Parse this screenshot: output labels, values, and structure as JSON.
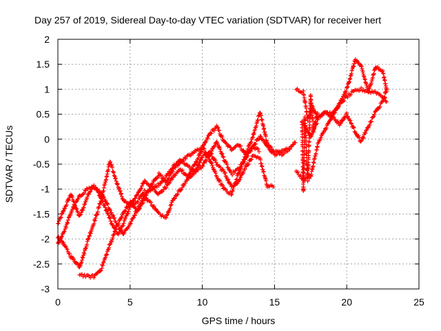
{
  "chart_data": {
    "type": "scatter",
    "title": "Day 257 of 2019, Sidereal Day-to-day VTEC variation (SDTVAR) for receiver hert",
    "xlabel": "GPS time / hours",
    "ylabel": "SDTVAR / TECUs",
    "xlim": [
      0,
      25
    ],
    "ylim": [
      -3,
      2
    ],
    "x_ticks": [
      "0",
      "5",
      "10",
      "15",
      "20",
      "25"
    ],
    "y_ticks": [
      "-3",
      "-2.5",
      "-2",
      "-1.5",
      "-1",
      "-0.5",
      "0",
      "0.5",
      "1",
      "1.5",
      "2"
    ],
    "grid": true,
    "marker": "+",
    "color": "#ff0000",
    "series": [
      {
        "x": [
          0,
          0.3,
          0.6,
          0.9,
          1.2,
          1.5,
          1.8,
          2.1,
          2.4,
          2.7,
          3.0,
          3.4,
          3.8,
          4.2,
          4.6,
          5.0,
          5.5,
          6.0,
          6.5,
          7.0,
          7.5,
          8.0,
          8.5,
          9.0,
          9.5,
          10.0,
          10.5,
          11.0,
          11.5,
          12.0,
          12.5,
          13.0,
          13.5,
          14.0,
          14.5,
          15.0,
          15.5,
          16.0,
          16.5
        ],
        "y": [
          -1.7,
          -1.5,
          -1.3,
          -1.1,
          -1.35,
          -1.55,
          -1.35,
          -1.1,
          -0.95,
          -1.0,
          -1.2,
          -1.45,
          -1.75,
          -1.9,
          -1.65,
          -1.35,
          -1.1,
          -0.85,
          -0.95,
          -1.1,
          -0.95,
          -0.75,
          -0.6,
          -0.75,
          -0.5,
          -0.2,
          0.1,
          0.25,
          -0.05,
          -0.2,
          -0.1,
          -0.3,
          -0.15,
          0.05,
          -0.15,
          -0.3,
          -0.25,
          -0.2,
          -0.05
        ]
      },
      {
        "x": [
          0,
          0.3,
          0.6,
          0.9,
          1.2,
          1.5,
          1.8,
          2.1,
          2.4,
          2.7,
          3.0,
          3.3,
          3.6,
          4.0,
          4.5,
          5.0,
          5.5,
          6.0,
          6.5,
          7.0,
          7.5,
          8.0,
          8.5,
          9.0,
          9.5,
          10.0,
          10.5,
          11.0,
          11.5,
          12.0,
          12.5,
          13.0,
          13.5,
          14.0
        ],
        "y": [
          -1.95,
          -2.05,
          -2.2,
          -2.35,
          -2.45,
          -2.55,
          -2.3,
          -2.0,
          -1.75,
          -1.5,
          -1.2,
          -0.85,
          -0.45,
          -0.8,
          -1.2,
          -1.35,
          -1.25,
          -1.05,
          -1.0,
          -0.9,
          -0.75,
          -0.55,
          -0.4,
          -0.55,
          -0.65,
          -0.55,
          -0.3,
          -0.05,
          -0.4,
          -0.7,
          -0.6,
          -0.4,
          -0.15,
          -0.25
        ]
      },
      {
        "x": [
          0,
          0.5,
          1.0,
          1.5,
          2.0,
          2.5,
          3.0,
          3.5,
          4.0,
          4.5,
          5.0,
          5.5,
          6.0,
          6.5,
          7.0,
          7.5,
          8.0,
          8.5,
          9.0,
          9.5,
          10.0,
          10.5,
          11.0,
          11.5,
          12.0,
          12.5,
          13.0,
          13.5,
          14.0,
          14.5,
          15.0
        ],
        "y": [
          -2.1,
          -1.8,
          -1.4,
          -1.15,
          -1.0,
          -0.95,
          -1.1,
          -1.35,
          -1.65,
          -1.9,
          -1.7,
          -1.4,
          -1.15,
          -1.3,
          -1.5,
          -1.55,
          -1.2,
          -1.0,
          -0.8,
          -0.65,
          -0.35,
          -0.25,
          -0.5,
          -0.65,
          -0.95,
          -0.85,
          -0.55,
          -0.35,
          -0.4,
          -0.95,
          -0.95
        ]
      },
      {
        "x": [
          1.5,
          2.0,
          2.5,
          3.0,
          3.5,
          4.0,
          4.5,
          5.0,
          5.5,
          6.0,
          6.5,
          7.0,
          7.5,
          8.0,
          8.5,
          9.0,
          9.5,
          10.0,
          10.5,
          11.0,
          11.5,
          12.0,
          12.5,
          13.0,
          13.5,
          14.0,
          14.5,
          15.0,
          15.5,
          16.0
        ],
        "y": [
          -2.7,
          -2.75,
          -2.75,
          -2.6,
          -2.2,
          -1.8,
          -1.5,
          -1.25,
          -1.45,
          -1.2,
          -0.9,
          -0.7,
          -0.85,
          -0.6,
          -0.45,
          -0.35,
          -0.25,
          -0.15,
          -0.4,
          -0.75,
          -1.0,
          -1.1,
          -0.7,
          -0.3,
          0.05,
          0.55,
          -0.1,
          -0.25,
          -0.3,
          -0.25
        ]
      },
      {
        "x": [
          16.5,
          17.0,
          17.3,
          17.6,
          18.0,
          18.5,
          19.0,
          19.5,
          20.0,
          20.5,
          21.0,
          21.5,
          22.0,
          22.5,
          22.8
        ],
        "y": [
          1.0,
          0.95,
          0.4,
          0.65,
          0.45,
          0.55,
          0.5,
          0.7,
          0.85,
          0.95,
          1.0,
          0.95,
          0.95,
          0.85,
          0.75
        ]
      },
      {
        "x": [
          16.5,
          17.0,
          17.5,
          18.0,
          18.5,
          19.0,
          19.5,
          20.0,
          20.3,
          20.6,
          21.0,
          21.5,
          22.0,
          22.5,
          22.8
        ],
        "y": [
          -0.65,
          -0.8,
          -0.75,
          -0.1,
          0.2,
          0.45,
          0.7,
          1.0,
          1.3,
          1.6,
          1.45,
          0.95,
          1.45,
          1.35,
          0.95
        ]
      },
      {
        "x": [
          17.0,
          17.5,
          18.0,
          18.5,
          19.0,
          19.5,
          20.0,
          20.5,
          21.0,
          21.5,
          22.0,
          22.5,
          22.8
        ],
        "y": [
          0.3,
          0.05,
          0.4,
          0.55,
          0.45,
          0.3,
          0.5,
          0.2,
          -0.05,
          0.25,
          0.55,
          0.75,
          1.05
        ]
      },
      {
        "x": [
          16.9,
          17.0,
          17.1,
          17.3,
          17.5,
          17.7,
          18.0
        ],
        "y": [
          0.35,
          -1.05,
          0.45,
          -0.85,
          0.9,
          0.15,
          0.55
        ]
      }
    ]
  }
}
